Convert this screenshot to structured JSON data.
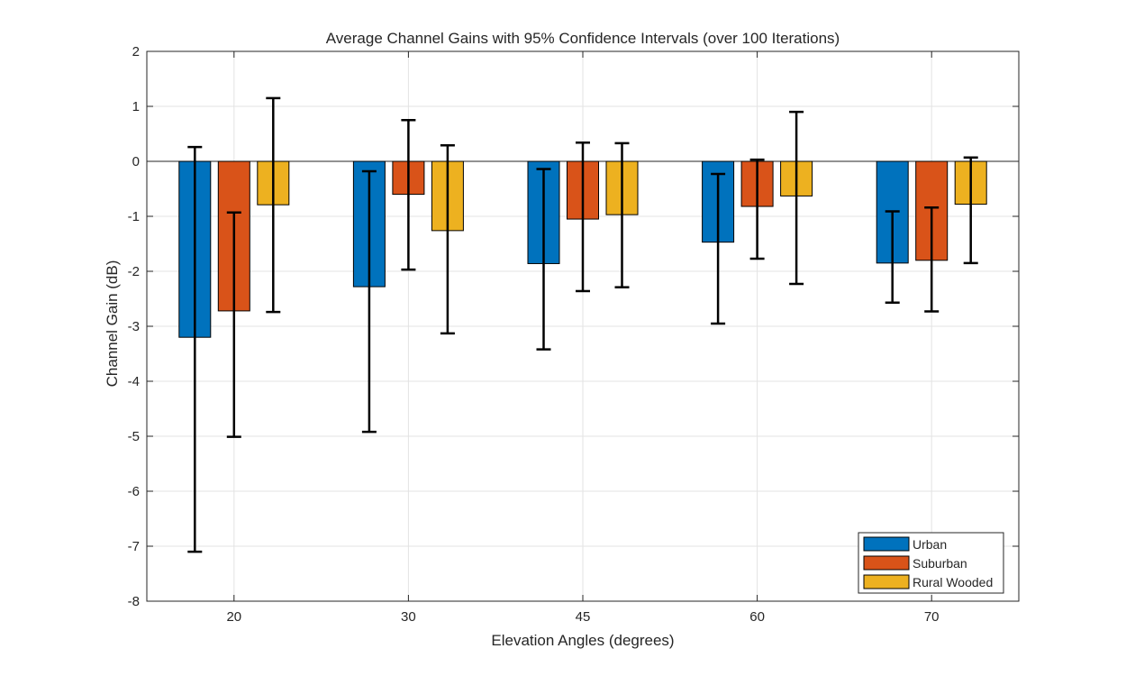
{
  "chart_data": {
    "type": "bar",
    "title": "Average Channel Gains with 95% Confidence Intervals (over 100 Iterations)",
    "xlabel": "Elevation Angles (degrees)",
    "ylabel": "Channel Gain (dB)",
    "ylim": [
      -8,
      2
    ],
    "yticks": [
      2,
      1,
      0,
      -1,
      -2,
      -3,
      -4,
      -5,
      -6,
      -7,
      -8
    ],
    "categories": [
      "20",
      "30",
      "45",
      "60",
      "70"
    ],
    "grid": true,
    "legend_position": "bottom-right",
    "series": [
      {
        "name": "Urban",
        "color": "#0072BD",
        "values": [
          -3.2,
          -2.28,
          -1.86,
          -1.47,
          -1.85
        ],
        "ci_lower": [
          -7.1,
          -4.92,
          -3.42,
          -2.95,
          -2.57
        ],
        "ci_upper": [
          0.26,
          -0.18,
          -0.14,
          -0.23,
          -0.91
        ]
      },
      {
        "name": "Suburban",
        "color": "#D95319",
        "values": [
          -2.72,
          -0.6,
          -1.05,
          -0.82,
          -1.8
        ],
        "ci_lower": [
          -5.01,
          -1.97,
          -2.36,
          -1.77,
          -2.73
        ],
        "ci_upper": [
          -0.93,
          0.75,
          0.34,
          0.03,
          -0.84
        ]
      },
      {
        "name": "Rural Wooded",
        "color": "#EDB120",
        "values": [
          -0.79,
          -1.26,
          -0.97,
          -0.63,
          -0.78
        ],
        "ci_lower": [
          -2.74,
          -3.13,
          -2.29,
          -2.23,
          -1.85
        ],
        "ci_upper": [
          1.15,
          0.29,
          0.33,
          0.9,
          0.07
        ]
      }
    ]
  }
}
